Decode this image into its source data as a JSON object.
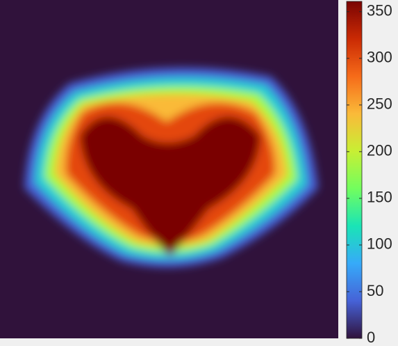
{
  "chart_data": {
    "type": "heatmap",
    "colormap": "turbo",
    "clim": [
      0,
      361
    ],
    "cticks": [
      0,
      50,
      100,
      150,
      200,
      250,
      300,
      350
    ]
  }
}
